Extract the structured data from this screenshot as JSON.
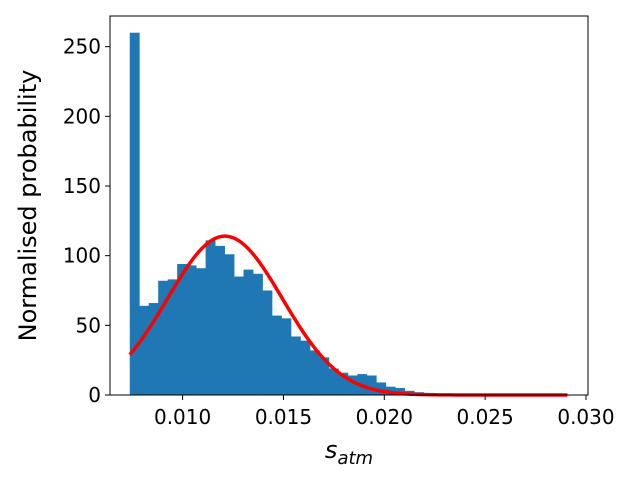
{
  "chart_data": {
    "type": "bar",
    "title": "",
    "xlabel": "s",
    "xlabel_subscript": "atm",
    "ylabel": "Normalised probability",
    "xlim": [
      0.0064,
      0.0301
    ],
    "ylim": [
      0,
      272
    ],
    "xticks": [
      0.01,
      0.015,
      0.02,
      0.025,
      0.03
    ],
    "xtick_labels": [
      "0.010",
      "0.015",
      "0.020",
      "0.025",
      "0.030"
    ],
    "yticks": [
      0,
      50,
      100,
      150,
      200,
      250
    ],
    "ytick_labels": [
      "0",
      "50",
      "100",
      "150",
      "200",
      "250"
    ],
    "grid": false,
    "legend": "none",
    "bar_color": "#1f77b4",
    "curve_color": "#ff0000",
    "bin_width": 0.00047,
    "series": [
      {
        "kind": "histogram",
        "x": [
          0.00738,
          0.00785,
          0.00832,
          0.00879,
          0.00926,
          0.00973,
          0.0102,
          0.01067,
          0.01114,
          0.01161,
          0.01208,
          0.01255,
          0.01302,
          0.01349,
          0.01396,
          0.01443,
          0.0149,
          0.01537,
          0.01584,
          0.01631,
          0.01678,
          0.01725,
          0.01772,
          0.01819,
          0.01866,
          0.01913,
          0.0196,
          0.02007,
          0.02054,
          0.02101,
          0.02148,
          0.02195,
          0.02242,
          0.02289,
          0.02336,
          0.02383,
          0.0243
        ],
        "values": [
          260,
          64,
          66,
          82,
          83,
          94,
          93,
          91,
          111,
          107,
          101,
          85,
          90,
          87,
          75,
          57,
          55,
          42,
          39,
          32,
          27,
          19,
          16,
          14,
          15,
          14,
          9,
          6,
          5,
          3,
          2,
          1.5,
          1,
          0.5,
          0.5,
          0.3,
          0.2
        ]
      },
      {
        "kind": "curve",
        "distribution": "normal",
        "mean": 0.0121,
        "std": 0.00285,
        "peak": 114,
        "x_range": [
          0.00738,
          0.02908
        ]
      }
    ]
  }
}
